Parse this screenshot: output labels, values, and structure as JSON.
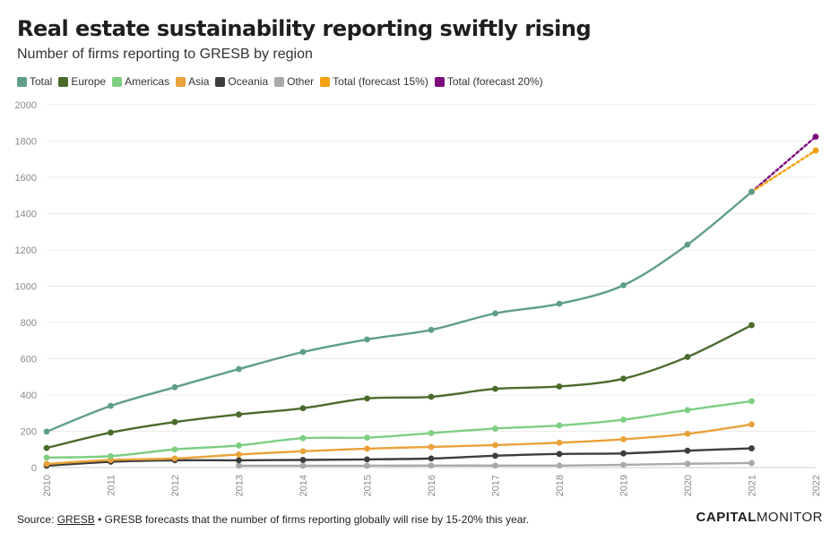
{
  "header": {
    "title": "Real estate sustainability reporting swiftly rising",
    "subtitle": "Number of firms reporting to GRESB by region"
  },
  "footer": {
    "source_label": "Source:",
    "source_link": "GRESB",
    "separator": "•",
    "note": "GRESB forecasts that the number of firms reporting globally will rise by 15-20% this year."
  },
  "brand": {
    "part1": "CAPITAL",
    "part2": "MONITOR"
  },
  "chart_data": {
    "type": "line",
    "title": "Real estate sustainability reporting swiftly rising",
    "subtitle": "Number of firms reporting to GRESB by region",
    "xlabel": "",
    "ylabel": "",
    "ylim": [
      0,
      2000
    ],
    "yticks": [
      0,
      200,
      400,
      600,
      800,
      1000,
      1200,
      1400,
      1600,
      1800,
      2000
    ],
    "x": [
      "2010",
      "2011",
      "2012",
      "2013",
      "2014",
      "2015",
      "2016",
      "2017",
      "2018",
      "2019",
      "2020",
      "2021",
      "2022"
    ],
    "grid": true,
    "legend_position": "top-left",
    "series": [
      {
        "name": "Total",
        "color": "#5f9e8a",
        "dashed": false,
        "values": [
          198,
          340,
          443,
          543,
          637,
          706,
          759,
          850,
          903,
          1005,
          1229,
          1520,
          null
        ]
      },
      {
        "name": "Europe",
        "color": "#4a6b2c",
        "dashed": false,
        "values": [
          108,
          193,
          251,
          293,
          327,
          381,
          390,
          434,
          447,
          490,
          610,
          785,
          null
        ]
      },
      {
        "name": "Americas",
        "color": "#7dce82",
        "dashed": false,
        "values": [
          55,
          63,
          100,
          122,
          162,
          165,
          190,
          215,
          232,
          264,
          317,
          366,
          null
        ]
      },
      {
        "name": "Asia",
        "color": "#eaa23a",
        "dashed": false,
        "values": [
          20,
          42,
          50,
          72,
          90,
          104,
          114,
          124,
          137,
          156,
          186,
          238,
          null
        ]
      },
      {
        "name": "Oceania",
        "color": "#3d3d3d",
        "dashed": false,
        "values": [
          10,
          32,
          40,
          40,
          42,
          45,
          50,
          65,
          75,
          78,
          93,
          106,
          null
        ]
      },
      {
        "name": "Other",
        "color": "#a9a9a9",
        "dashed": false,
        "values": [
          null,
          null,
          null,
          10,
          10,
          10,
          11,
          11,
          11,
          15,
          21,
          25,
          null
        ]
      },
      {
        "name": "Total (forecast 15%)",
        "color": "#f4a012",
        "dashed": true,
        "values": [
          null,
          null,
          null,
          null,
          null,
          null,
          null,
          null,
          null,
          null,
          null,
          1520,
          1748
        ]
      },
      {
        "name": "Total (forecast 20%)",
        "color": "#7b0a7e",
        "dashed": true,
        "values": [
          null,
          null,
          null,
          null,
          null,
          null,
          null,
          null,
          null,
          null,
          null,
          1520,
          1824
        ]
      }
    ]
  }
}
